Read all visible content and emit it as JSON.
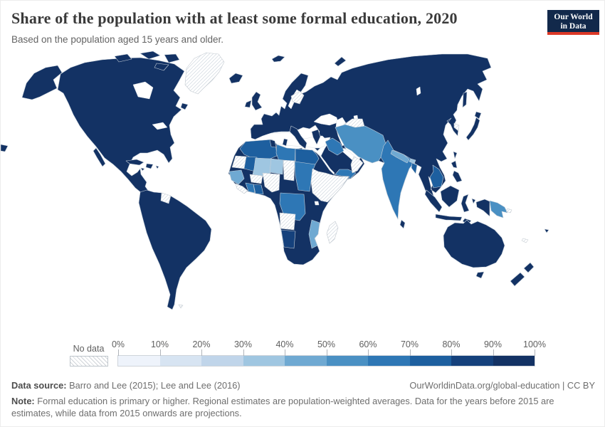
{
  "header": {
    "title": "Share of the population with at least some formal education, 2020",
    "subtitle": "Based on the population aged 15 years and older.",
    "logo": {
      "line1": "Our World",
      "line2": "in Data",
      "bg_color": "#12294b",
      "accent_color": "#dc3927"
    }
  },
  "legend": {
    "no_data_label": "No data",
    "tick_labels": [
      "0%",
      "10%",
      "20%",
      "30%",
      "40%",
      "50%",
      "60%",
      "70%",
      "80%",
      "90%",
      "100%"
    ],
    "bin_colors": [
      "#eef3fb",
      "#d7e4f2",
      "#c0d5ea",
      "#9fc6e1",
      "#6fa9d2",
      "#4a90c3",
      "#2e77b5",
      "#1d5f9f",
      "#15417c",
      "#133264"
    ],
    "no_data_pattern": "diagonal-hatch"
  },
  "footer": {
    "source_label": "Data source:",
    "source_text": "Barro and Lee (2015); Lee and Lee (2016)",
    "link_text": "OurWorldinData.org/global-education | CC BY",
    "note_label": "Note:",
    "note_text": "Formal education is primary or higher. Regional estimates are population-weighted averages. Data for the years before 2015 are estimates, while data from 2015 onwards are projections."
  },
  "chart_data": {
    "type": "choropleth_map",
    "title": "Share of the population with at least some formal education, 2020",
    "unit": "%",
    "year": 2020,
    "scale": {
      "min": 0,
      "max": 100,
      "bins": 10,
      "bin_size": 10,
      "colors_low_to_high": [
        "#eef3fb",
        "#d7e4f2",
        "#c0d5ea",
        "#9fc6e1",
        "#6fa9d2",
        "#4a90c3",
        "#2e77b5",
        "#1d5f9f",
        "#15417c",
        "#133264"
      ],
      "no_data": "hatched"
    },
    "regions_by_value_bucket": {
      "90-100": [
        "United States",
        "Canada",
        "Mexico",
        "Central America",
        "Cuba",
        "South America (most countries)",
        "Europe",
        "Russia",
        "Kazakhstan",
        "Turkey",
        "Saudi Arabia",
        "China",
        "Mongolia",
        "Japan",
        "South Korea",
        "Taiwan",
        "Philippines",
        "Vietnam",
        "Thailand",
        "Myanmar",
        "Malaysia",
        "Indonesia",
        "Sri Lanka",
        "Australia",
        "New Zealand",
        "Fiji",
        "South Africa",
        "Botswana",
        "Zimbabwe",
        "Zambia",
        "Tanzania",
        "Kenya",
        "Uganda",
        "Cameroon",
        "Gabon",
        "Central African Republic",
        "Iceland",
        "Svalbard region"
      ],
      "80-90": [
        "Morocco",
        "Algeria",
        "Egypt",
        "Mauritania",
        "Ghana",
        "Bangladesh",
        "Laos",
        "Cambodia"
      ],
      "80-90_alt": [
        "Namibia (≈80-90)"
      ],
      "70-80": [
        "Libya",
        "India",
        "Yemen",
        "Sudan",
        "South Sudan",
        "Iraq",
        "Syria",
        "DR Congo",
        "Côte d'Ivoire"
      ],
      "60-70": [
        "Iran",
        "Afghanistan",
        "Pakistan",
        "Papua New Guinea"
      ],
      "50-60": [
        "Senegal",
        "Guinea region",
        "Mozambique",
        "Nepal"
      ],
      "30-40": [
        "Mali",
        "Niger",
        "Bhutan"
      ],
      "no_data": [
        "Greenland",
        "Guyana",
        "Suriname",
        "Western Sahara",
        "Sierra Leone",
        "Liberia",
        "Burkina Faso",
        "Nigeria",
        "Chad",
        "Eritrea",
        "Ethiopia",
        "Somalia",
        "Angola",
        "Madagascar",
        "Oman",
        "Belarus/Baltic area",
        "Turkmenistan",
        "Uzbekistan",
        "North Korea",
        "Solomon Islands",
        "New Caledonia",
        "Falkland Islands"
      ]
    },
    "legend_position": "bottom",
    "projection": "world map, Robinson-like"
  }
}
